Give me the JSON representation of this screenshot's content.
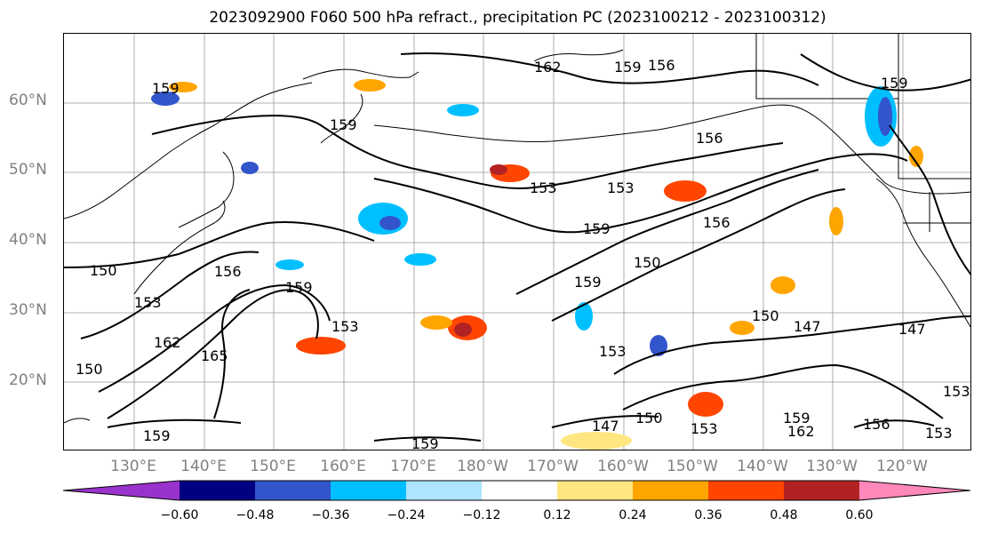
{
  "title": "2023092900 F060 500 hPa refract., precipitation PC (2023100212 - 2023100312)",
  "lat_labels": [
    "60°N",
    "50°N",
    "40°N",
    "30°N",
    "20°N"
  ],
  "lon_labels": [
    "130°E",
    "140°E",
    "150°E",
    "160°E",
    "170°E",
    "180°W",
    "170°W",
    "160°W",
    "150°W",
    "140°W",
    "130°W",
    "120°W"
  ],
  "contour_labels": [
    "159",
    "162",
    "156",
    "159",
    "156",
    "153",
    "153",
    "159",
    "150",
    "159",
    "156",
    "150",
    "156",
    "153",
    "159",
    "165",
    "162",
    "153",
    "159",
    "150",
    "159",
    "147",
    "147",
    "153",
    "150",
    "147",
    "150",
    "153",
    "159",
    "162",
    "156",
    "153",
    "159",
    "153",
    "159"
  ],
  "colorbar": {
    "ticks": [
      "−0.60",
      "−0.48",
      "−0.36",
      "−0.24",
      "−0.12",
      "0.12",
      "0.24",
      "0.36",
      "0.48",
      "0.60"
    ],
    "colors": [
      "#9933cc",
      "#000080",
      "#3355cc",
      "#00bfff",
      "#aee4ff",
      "#ffffff",
      "#ffe680",
      "#ffa500",
      "#ff4500",
      "#b22222",
      "#ff88bb"
    ]
  }
}
